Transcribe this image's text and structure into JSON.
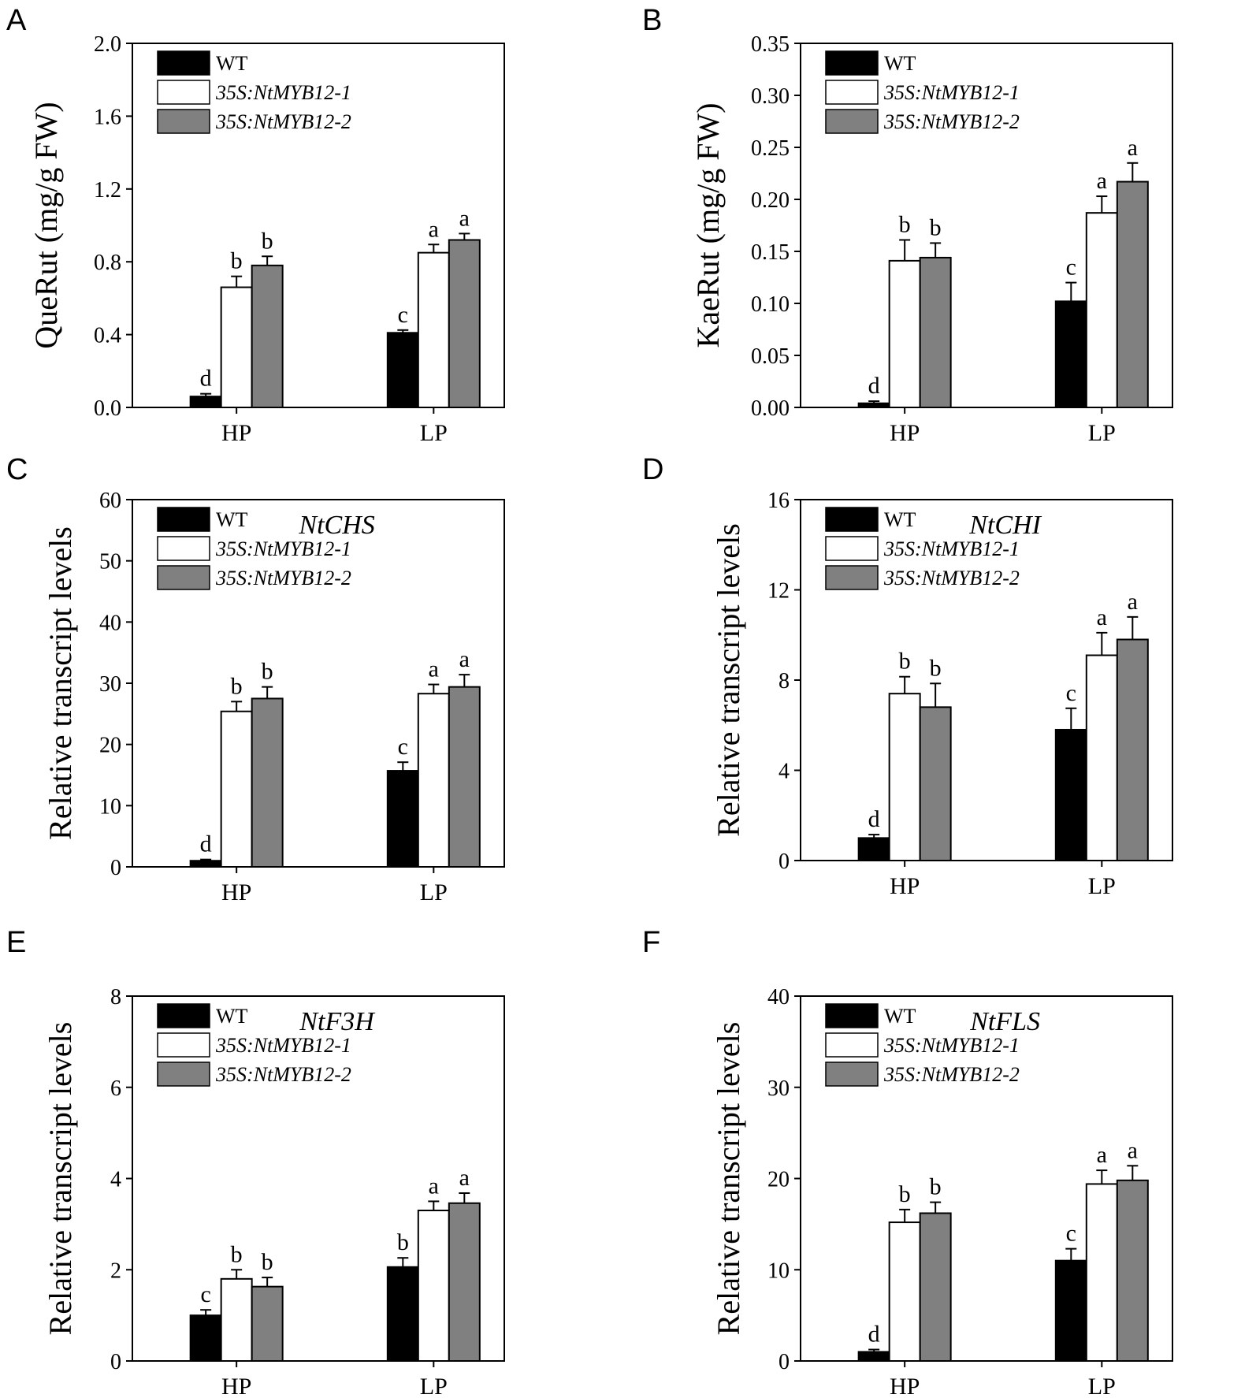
{
  "figure": {
    "series_styles": [
      {
        "name": "WT",
        "fill": "#000000",
        "italic": false
      },
      {
        "name": "35S:NtMYB12-1",
        "fill": "#ffffff",
        "italic": true
      },
      {
        "name": "35S:NtMYB12-2",
        "fill": "#808080",
        "italic": true
      }
    ],
    "colors": {
      "axis": "#000000",
      "wt": "#000000",
      "line1": "#ffffff",
      "line2": "#808080"
    }
  },
  "chart_data": [
    {
      "panel": "A",
      "type": "bar",
      "gene": "",
      "ylabel": "QueRut (mg/g FW)",
      "xlabel": "",
      "ylim": [
        0,
        2.0
      ],
      "yticks": [
        "0.0",
        "0.4",
        "0.8",
        "1.2",
        "1.6",
        "2.0"
      ],
      "categories": [
        "HP",
        "LP"
      ],
      "series": [
        {
          "name": "WT",
          "values": [
            0.06,
            0.41
          ],
          "errors": [
            0.015,
            0.015
          ],
          "letters": [
            "d",
            "c"
          ]
        },
        {
          "name": "35S:NtMYB12-1",
          "values": [
            0.66,
            0.85
          ],
          "errors": [
            0.06,
            0.045
          ],
          "letters": [
            "b",
            "a"
          ]
        },
        {
          "name": "35S:NtMYB12-2",
          "values": [
            0.78,
            0.92
          ],
          "errors": [
            0.05,
            0.035
          ],
          "letters": [
            "b",
            "a"
          ]
        }
      ]
    },
    {
      "panel": "B",
      "type": "bar",
      "gene": "",
      "ylabel": "KaeRut (mg/g FW)",
      "xlabel": "",
      "ylim": [
        0,
        0.35
      ],
      "yticks": [
        "0.00",
        "0.05",
        "0.10",
        "0.15",
        "0.20",
        "0.25",
        "0.30",
        "0.35"
      ],
      "categories": [
        "HP",
        "LP"
      ],
      "series": [
        {
          "name": "WT",
          "values": [
            0.004,
            0.102
          ],
          "errors": [
            0.002,
            0.018
          ],
          "letters": [
            "d",
            "c"
          ]
        },
        {
          "name": "35S:NtMYB12-1",
          "values": [
            0.141,
            0.187
          ],
          "errors": [
            0.02,
            0.016
          ],
          "letters": [
            "b",
            "a"
          ]
        },
        {
          "name": "35S:NtMYB12-2",
          "values": [
            0.144,
            0.217
          ],
          "errors": [
            0.014,
            0.018
          ],
          "letters": [
            "b",
            "a"
          ]
        }
      ]
    },
    {
      "panel": "C",
      "type": "bar",
      "gene": "NtCHS",
      "ylabel": "Relative transcript levels",
      "xlabel": "",
      "ylim": [
        0,
        60
      ],
      "yticks": [
        "0",
        "10",
        "20",
        "30",
        "40",
        "50",
        "60"
      ],
      "categories": [
        "HP",
        "LP"
      ],
      "series": [
        {
          "name": "WT",
          "values": [
            1.0,
            15.7
          ],
          "errors": [
            0.2,
            1.4
          ],
          "letters": [
            "d",
            "c"
          ]
        },
        {
          "name": "35S:NtMYB12-1",
          "values": [
            25.4,
            28.3
          ],
          "errors": [
            1.6,
            1.5
          ],
          "letters": [
            "b",
            "a"
          ]
        },
        {
          "name": "35S:NtMYB12-2",
          "values": [
            27.5,
            29.4
          ],
          "errors": [
            1.9,
            2.0
          ],
          "letters": [
            "b",
            "a"
          ]
        }
      ]
    },
    {
      "panel": "D",
      "type": "bar",
      "gene": "NtCHI",
      "ylabel": "Relative transcript levels",
      "xlabel": "",
      "ylim": [
        0,
        16
      ],
      "yticks": [
        "0",
        "4",
        "8",
        "12",
        "16"
      ],
      "categories": [
        "HP",
        "LP"
      ],
      "series": [
        {
          "name": "WT",
          "values": [
            1.0,
            5.8
          ],
          "errors": [
            0.15,
            0.95
          ],
          "letters": [
            "d",
            "c"
          ]
        },
        {
          "name": "35S:NtMYB12-1",
          "values": [
            7.4,
            9.1
          ],
          "errors": [
            0.75,
            1.0
          ],
          "letters": [
            "b",
            "a"
          ]
        },
        {
          "name": "35S:NtMYB12-2",
          "values": [
            6.8,
            9.8
          ],
          "errors": [
            1.05,
            1.0
          ],
          "letters": [
            "b",
            "a"
          ]
        }
      ]
    },
    {
      "panel": "E",
      "type": "bar",
      "gene": "NtF3H",
      "ylabel": "Relative transcript levels",
      "xlabel": "",
      "ylim": [
        0,
        8
      ],
      "yticks": [
        "0",
        "2",
        "4",
        "6",
        "8"
      ],
      "categories": [
        "HP",
        "LP"
      ],
      "series": [
        {
          "name": "WT",
          "values": [
            1.0,
            2.06
          ],
          "errors": [
            0.12,
            0.2
          ],
          "letters": [
            "c",
            "b"
          ]
        },
        {
          "name": "35S:NtMYB12-1",
          "values": [
            1.8,
            3.3
          ],
          "errors": [
            0.2,
            0.2
          ],
          "letters": [
            "b",
            "a"
          ]
        },
        {
          "name": "35S:NtMYB12-2",
          "values": [
            1.63,
            3.46
          ],
          "errors": [
            0.2,
            0.22
          ],
          "letters": [
            "b",
            "a"
          ]
        }
      ]
    },
    {
      "panel": "F",
      "type": "bar",
      "gene": "NtFLS",
      "ylabel": "Relative transcript levels",
      "xlabel": "",
      "ylim": [
        0,
        40
      ],
      "yticks": [
        "0",
        "10",
        "20",
        "30",
        "40"
      ],
      "categories": [
        "HP",
        "LP"
      ],
      "series": [
        {
          "name": "WT",
          "values": [
            1.0,
            11.0
          ],
          "errors": [
            0.25,
            1.3
          ],
          "letters": [
            "d",
            "c"
          ]
        },
        {
          "name": "35S:NtMYB12-1",
          "values": [
            15.2,
            19.4
          ],
          "errors": [
            1.4,
            1.5
          ],
          "letters": [
            "b",
            "a"
          ]
        },
        {
          "name": "35S:NtMYB12-2",
          "values": [
            16.2,
            19.8
          ],
          "errors": [
            1.2,
            1.6
          ],
          "letters": [
            "b",
            "a"
          ]
        }
      ]
    }
  ]
}
